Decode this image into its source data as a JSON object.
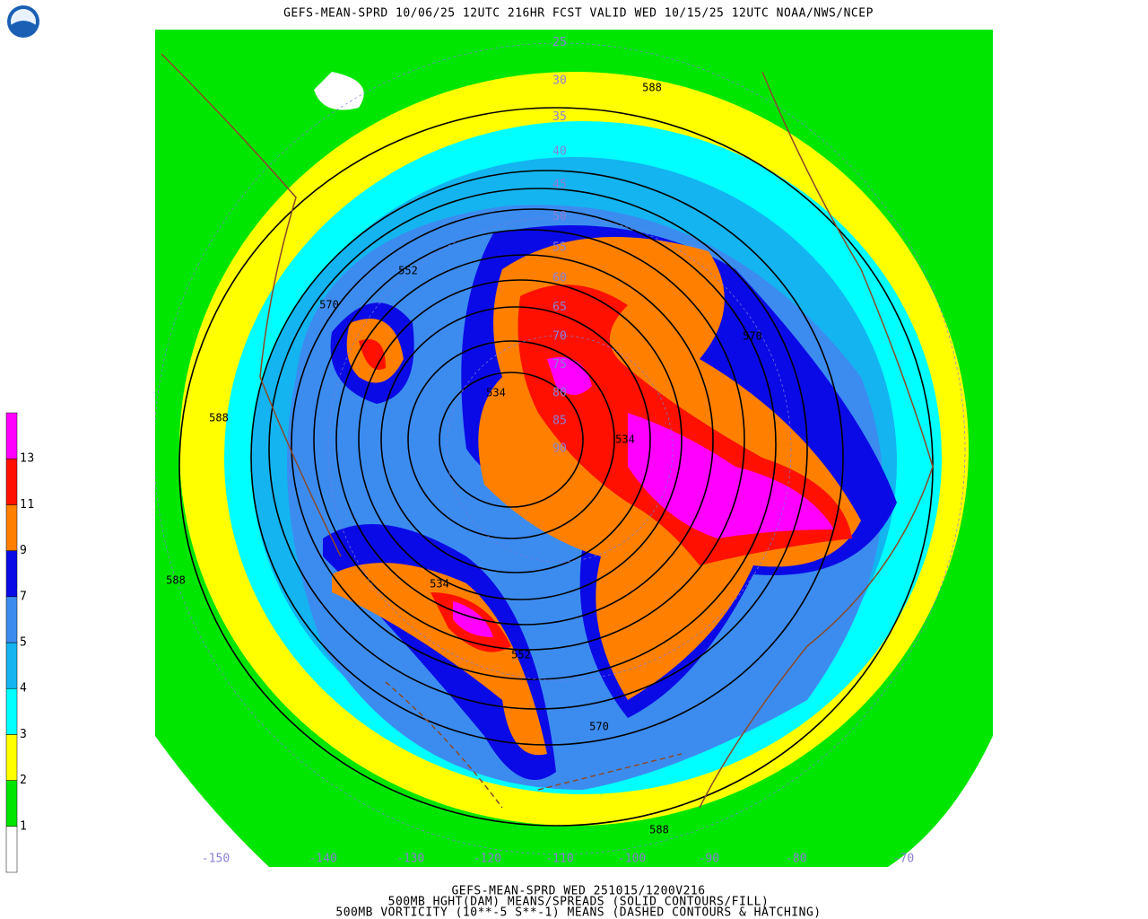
{
  "header": {
    "title": "GEFS-MEAN-SPRD 10/06/25 12UTC 216HR FCST VALID WED 10/15/25 12UTC NOAA/NWS/NCEP"
  },
  "colorbar": {
    "levels": [
      "1",
      "2",
      "3",
      "4",
      "5",
      "7",
      "9",
      "11",
      "13"
    ],
    "colors": [
      "#ffffff",
      "#00e600",
      "#ffff00",
      "#00ffff",
      "#14b4f0",
      "#3c8cf0",
      "#0a0ae6",
      "#ff8000",
      "#ff1000",
      "#ff00ff"
    ]
  },
  "map": {
    "latitude_labels": [
      "25",
      "30",
      "35",
      "40",
      "45",
      "50",
      "55",
      "60",
      "65",
      "70",
      "75",
      "80",
      "85",
      "90"
    ],
    "longitude_labels": [
      "-150",
      "-140",
      "-130",
      "-120",
      "-110",
      "-100",
      "-90",
      "-80",
      "-70"
    ],
    "contour_labels": [
      "588",
      "588",
      "588",
      "588",
      "570",
      "570",
      "570",
      "552",
      "552",
      "534",
      "534",
      "534"
    ]
  },
  "footer": {
    "lines": [
      "GEFS-MEAN-SPRD WED 251015/1200V216",
      "500MB HGHT(DAM) MEANS/SPREADS (SOLID CONTOURS/FILL)",
      "500MB VORTICITY (10**-5 S**-1) MEANS (DASHED CONTOURS & HATCHING)"
    ]
  }
}
